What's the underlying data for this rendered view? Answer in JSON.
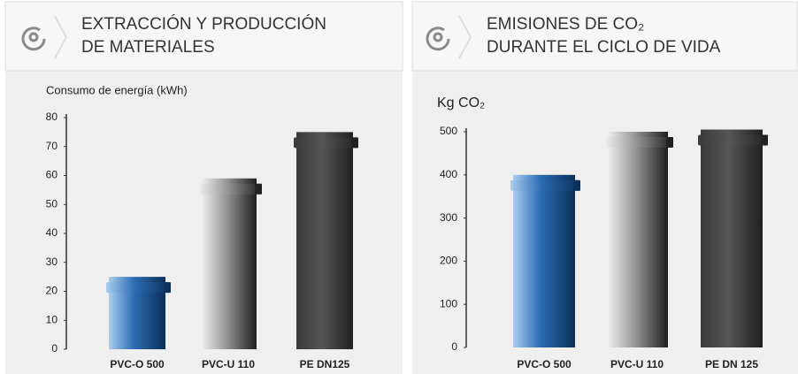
{
  "chart_data": [
    {
      "type": "bar",
      "title": [
        "EXTRACCIÓN Y PRODUCCIÓN",
        "DE MATERIALES"
      ],
      "y_label": "Consumo de energía (kWh)",
      "categories": [
        "PVC-O 500",
        "PVC-U 110",
        "PE DN125"
      ],
      "values": [
        25,
        59,
        75
      ],
      "gradients": [
        [
          "#a9cdf0",
          "#2a6bb0",
          "#0b2f5a"
        ],
        [
          "#f4f4f4",
          "#9a9a9a",
          "#1e1e1e"
        ],
        [
          "#3a3a3a",
          "#555555",
          "#202020"
        ]
      ],
      "ylim": [
        0,
        80
      ],
      "yticks": [
        0,
        10,
        20,
        30,
        40,
        50,
        60,
        70,
        80
      ]
    },
    {
      "type": "bar",
      "title": [
        "EMISIONES DE CO₂",
        "DURANTE EL CICLO DE VIDA"
      ],
      "y_label": "Kg CO₂",
      "categories": [
        "PVC-O 500",
        "PVC-U 110",
        "PE DN 125"
      ],
      "values": [
        400,
        500,
        505
      ],
      "gradients": [
        [
          "#a9cdf0",
          "#2a6bb0",
          "#0b2f5a"
        ],
        [
          "#f4f4f4",
          "#9a9a9a",
          "#1e1e1e"
        ],
        [
          "#3a3a3a",
          "#555555",
          "#202020"
        ]
      ],
      "ylim": [
        0,
        500
      ],
      "yticks": [
        0,
        100,
        200,
        300,
        400,
        500
      ]
    }
  ]
}
